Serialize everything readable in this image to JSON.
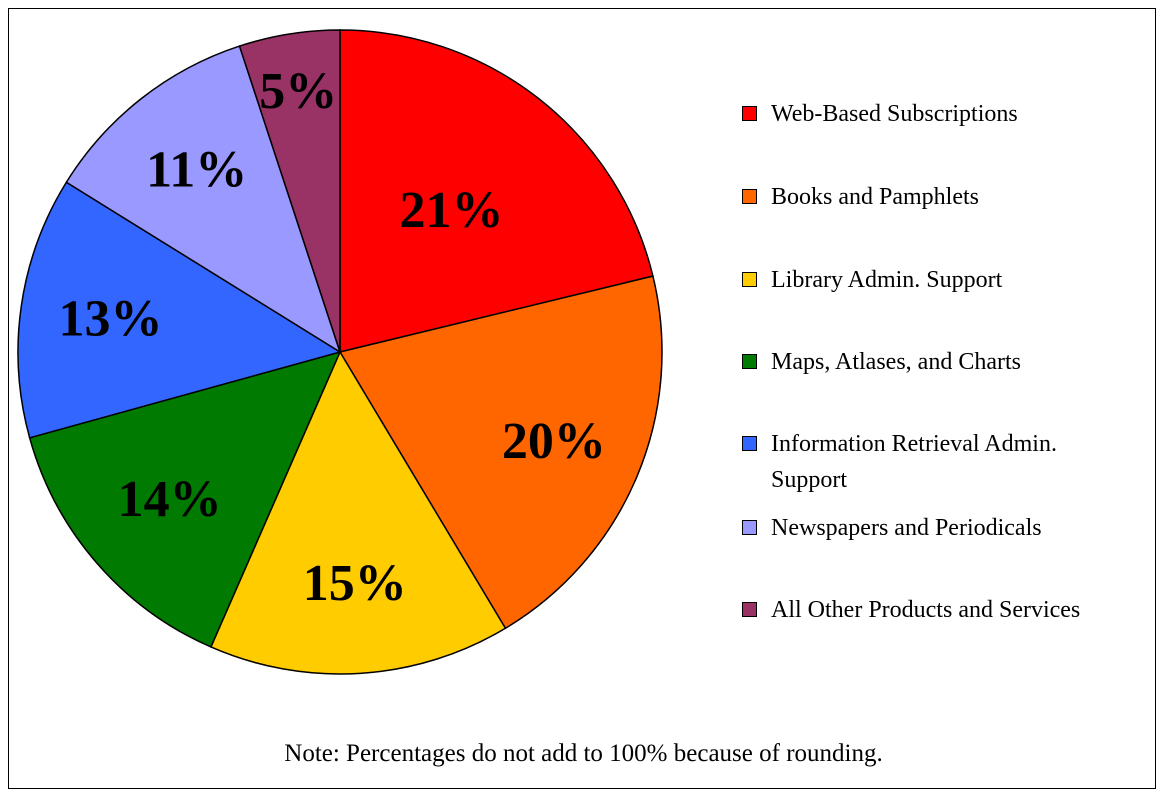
{
  "chart_data": {
    "type": "pie",
    "slices": [
      {
        "label": "Web-Based Subscriptions",
        "value": 21,
        "display": "21%",
        "color": "#FF0000"
      },
      {
        "label": "Books and Pamphlets",
        "value": 20,
        "display": "20%",
        "color": "#FF6600"
      },
      {
        "label": "Library Admin. Support",
        "value": 15,
        "display": "15%",
        "color": "#FFCC00"
      },
      {
        "label": "Maps, Atlases, and Charts",
        "value": 14,
        "display": "14%",
        "color": "#007A00"
      },
      {
        "label": "Information Retrieval Admin. Support",
        "value": 13,
        "display": "13%",
        "color": "#3366FF"
      },
      {
        "label": "Newspapers and Periodicals",
        "value": 11,
        "display": "11%",
        "color": "#9999FF"
      },
      {
        "label": "All Other Products and Services",
        "value": 5,
        "display": "5%",
        "color": "#993366"
      }
    ],
    "legend_position": "right",
    "note": "Note: Percentages do not add to 100% because of rounding."
  }
}
